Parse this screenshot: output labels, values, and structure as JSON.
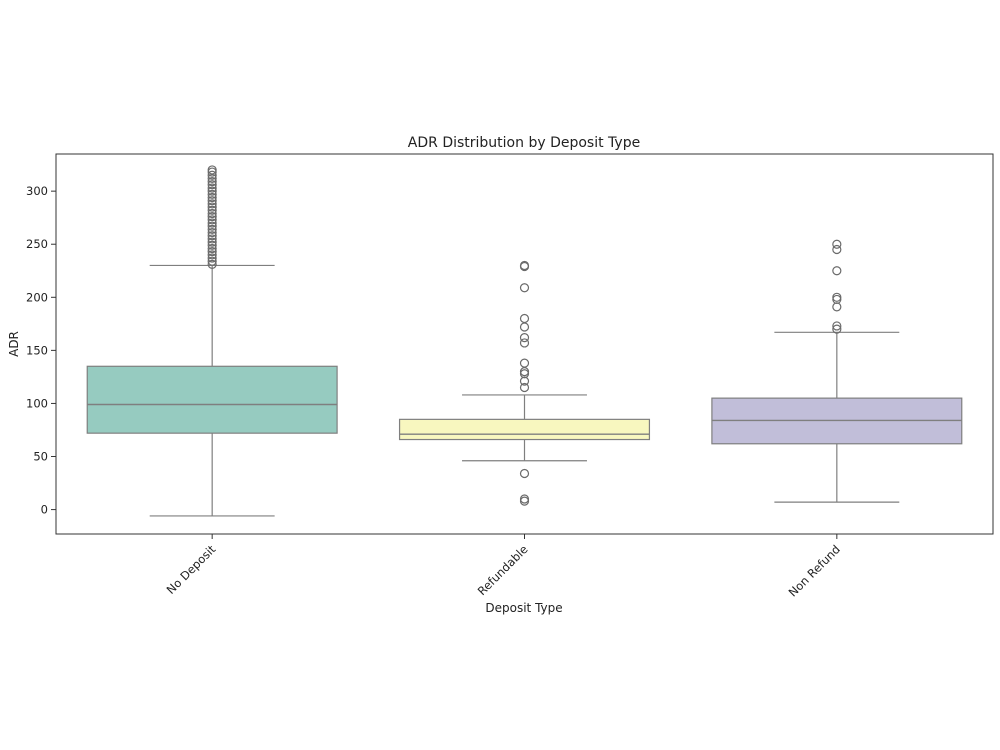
{
  "chart_data": {
    "type": "box",
    "title": "ADR Distribution by Deposit Type",
    "xlabel": "Deposit Type",
    "ylabel": "ADR",
    "ylim": [
      -23,
      335
    ],
    "yticks": [
      0,
      50,
      100,
      150,
      200,
      250,
      300
    ],
    "grid": false,
    "legend": "none",
    "categories": [
      "No Deposit",
      "Refundable",
      "Non Refund"
    ],
    "series": [
      {
        "category": "No Deposit",
        "color": "#96cbc0",
        "whisker_low": -6,
        "q1": 72,
        "median": 99,
        "q3": 135,
        "whisker_high": 230,
        "outliers": [
          231,
          234,
          237,
          240,
          243,
          246,
          249,
          252,
          255,
          258,
          261,
          264,
          267,
          270,
          273,
          276,
          279,
          282,
          285,
          288,
          291,
          294,
          297,
          300,
          303,
          306,
          309,
          312,
          315,
          318,
          320
        ]
      },
      {
        "category": "Refundable",
        "color": "#f8f7bf",
        "whisker_low": 46,
        "q1": 66,
        "median": 71,
        "q3": 85,
        "whisker_high": 108,
        "outliers": [
          115,
          121,
          128,
          130,
          138,
          157,
          162,
          172,
          180,
          209,
          229,
          230,
          34,
          10,
          8
        ]
      },
      {
        "category": "Non Refund",
        "color": "#c1bed9",
        "whisker_low": 7,
        "q1": 62,
        "median": 84,
        "q3": 105,
        "whisker_high": 167,
        "outliers": [
          170,
          173,
          191,
          198,
          200,
          225,
          245,
          250
        ]
      }
    ]
  }
}
